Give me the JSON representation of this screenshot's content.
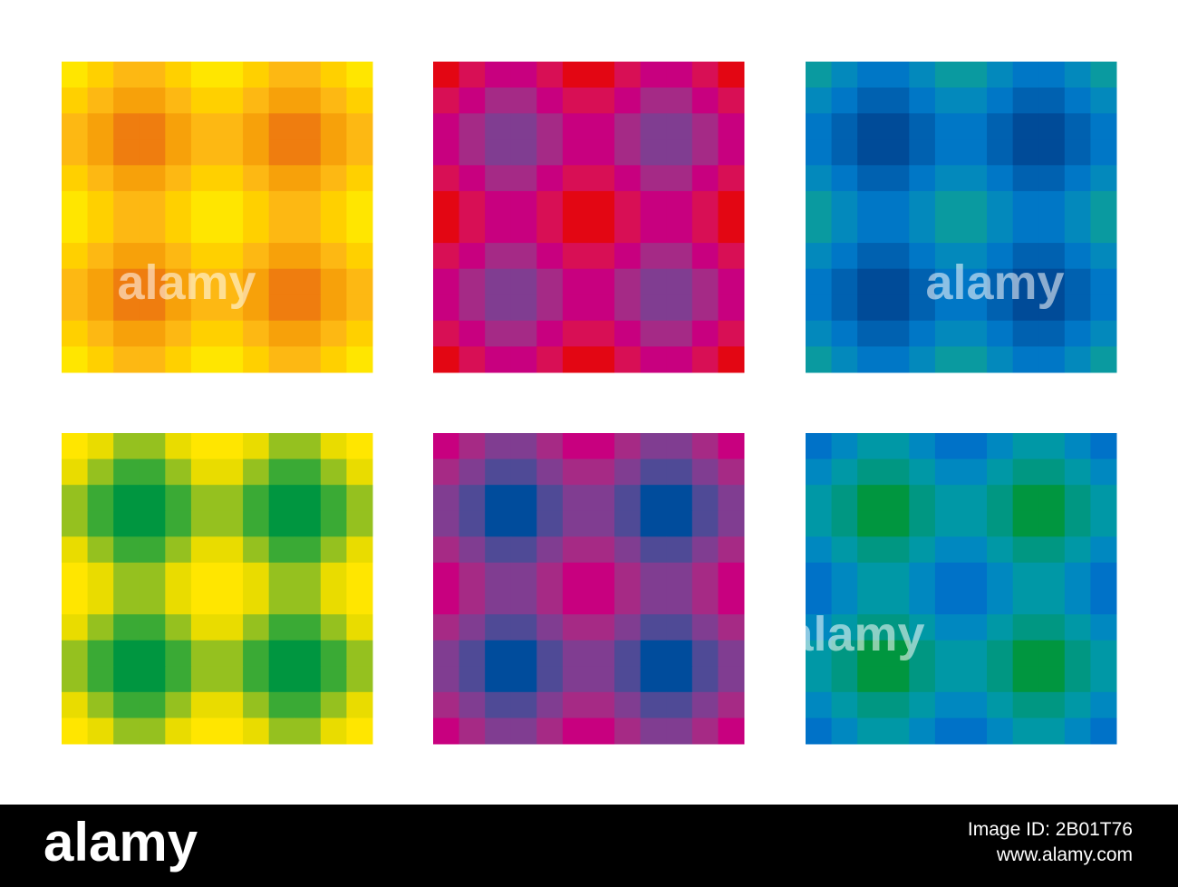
{
  "watermark": "alamy",
  "footer": {
    "logo": "alamy",
    "image_id": "Image ID: 2B01T76",
    "url": "www.alamy.com"
  }
}
